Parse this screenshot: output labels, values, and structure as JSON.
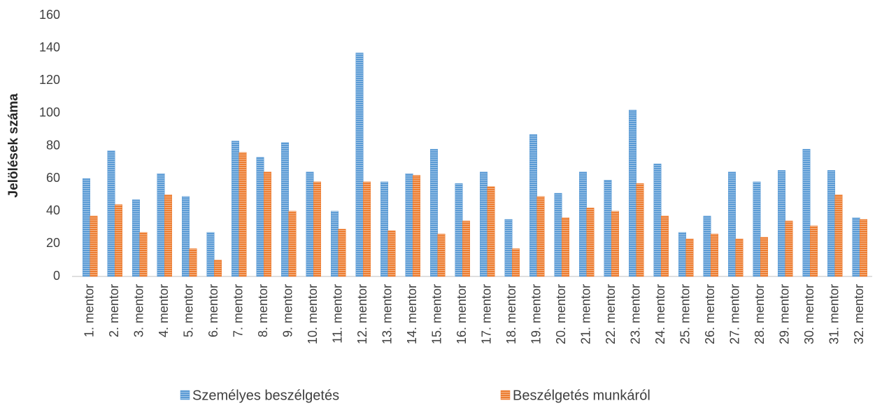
{
  "chart_data": {
    "type": "bar",
    "y_label": "Jelölések száma",
    "categories": [
      "1. mentor",
      "2. mentor",
      "3. mentor",
      "4. mentor",
      "5. mentor",
      "6. mentor",
      "7. mentor",
      "8. mentor",
      "9. mentor",
      "10. mentor",
      "11. mentor",
      "12. mentor",
      "13. mentor",
      "14. mentor",
      "15. mentor",
      "16. mentor",
      "17. mentor",
      "18. mentor",
      "19. mentor",
      "20. mentor",
      "21. mentor",
      "22. mentor",
      "23. mentor",
      "24. mentor",
      "25. mentor",
      "26. mentor",
      "27. mentor",
      "28. mentor",
      "29. mentor",
      "30. mentor",
      "31. mentor",
      "32. mentor"
    ],
    "series": [
      {
        "name": "Személyes beszélgetés",
        "color": "#5b9bd5",
        "values": [
          60,
          77,
          47,
          63,
          49,
          27,
          83,
          73,
          82,
          64,
          40,
          137,
          58,
          63,
          78,
          57,
          64,
          35,
          87,
          51,
          64,
          59,
          102,
          69,
          27,
          37,
          64,
          58,
          65,
          78,
          65,
          36
        ]
      },
      {
        "name": "Beszélgetés munkáról",
        "color": "#ed7d31",
        "values": [
          37,
          44,
          27,
          50,
          17,
          10,
          76,
          64,
          40,
          58,
          29,
          58,
          28,
          62,
          26,
          34,
          55,
          17,
          49,
          36,
          42,
          40,
          57,
          37,
          23,
          26,
          23,
          24,
          34,
          31,
          50,
          35
        ]
      }
    ],
    "ylim": [
      0,
      160
    ],
    "yticks": [
      0,
      20,
      40,
      60,
      80,
      100,
      120,
      140,
      160
    ],
    "grid": false
  }
}
